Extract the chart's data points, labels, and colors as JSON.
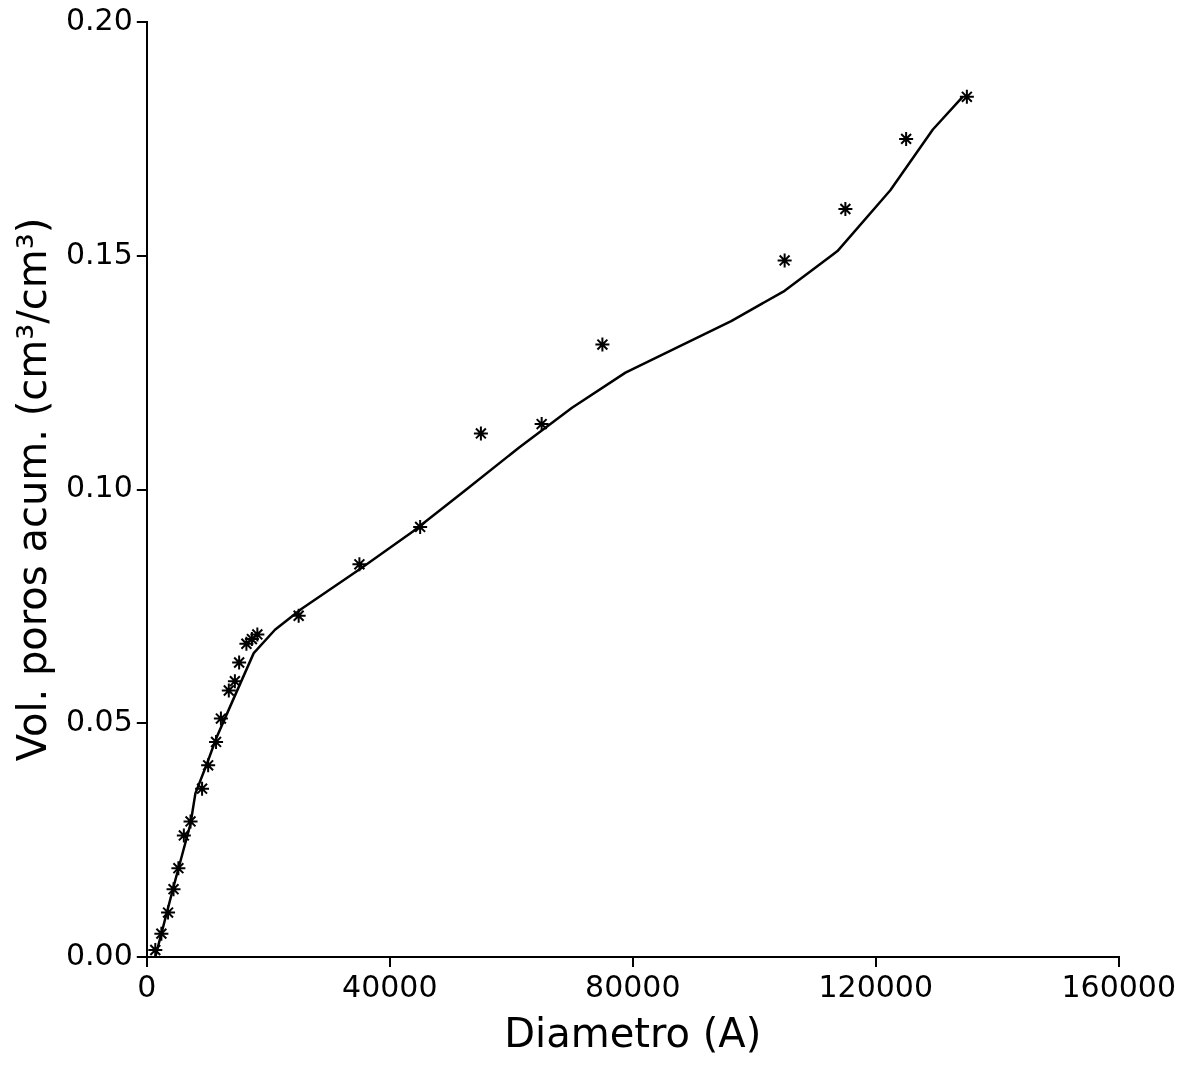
{
  "chart_data": {
    "type": "scatter",
    "xlabel": "Diametro (A)",
    "ylabel": "Vol. poros acum. (cm³/cm³)",
    "xlim": [
      0,
      160000
    ],
    "xticks": [
      0,
      40000,
      80000,
      120000,
      160000
    ],
    "ylim": [
      0,
      0.2
    ],
    "yticks": [
      {
        "value": 0,
        "label": "0.00"
      },
      {
        "value": 0.05,
        "label": "0.05"
      },
      {
        "value": 0.1,
        "label": "0.10"
      },
      {
        "value": 0.15,
        "label": "0.15"
      },
      {
        "value": 0.2,
        "label": "0.20"
      }
    ],
    "grid": false,
    "legend": false,
    "series": [
      {
        "type": "scatter",
        "marker": "cross",
        "color": "#000000",
        "x": [
          1400,
          2400,
          3500,
          4400,
          5200,
          6100,
          7200,
          9100,
          10100,
          11400,
          12200,
          13500,
          14500,
          15200,
          16400,
          17300,
          18200,
          25000,
          35000,
          45000,
          55000,
          65000,
          75000,
          105000,
          115000,
          125000,
          135000
        ],
        "values": [
          0.0015,
          0.005,
          0.0095,
          0.0145,
          0.019,
          0.026,
          0.029,
          0.036,
          0.041,
          0.046,
          0.051,
          0.057,
          0.059,
          0.063,
          0.067,
          0.068,
          0.069,
          0.073,
          0.084,
          0.092,
          0.112,
          0.114,
          0.131,
          0.149,
          0.16,
          0.175,
          0.184
        ]
      },
      {
        "type": "line",
        "marker": "none",
        "line_style": "solid",
        "color": "#000000",
        "x": [
          1400,
          2800,
          4500,
          7200,
          8000,
          9800,
          11500,
          14200,
          17600,
          21100,
          25500,
          35100,
          43800,
          52600,
          61300,
          70000,
          78800,
          87500,
          96200,
          105000,
          113700,
          122400,
          129400,
          134300
        ],
        "values": [
          0,
          0.007,
          0.0155,
          0.0285,
          0.035,
          0.041,
          0.047,
          0.055,
          0.065,
          0.07,
          0.0745,
          0.083,
          0.091,
          0.1,
          0.109,
          0.1175,
          0.125,
          0.1305,
          0.136,
          0.1425,
          0.151,
          0.164,
          0.177,
          0.184
        ]
      }
    ]
  }
}
